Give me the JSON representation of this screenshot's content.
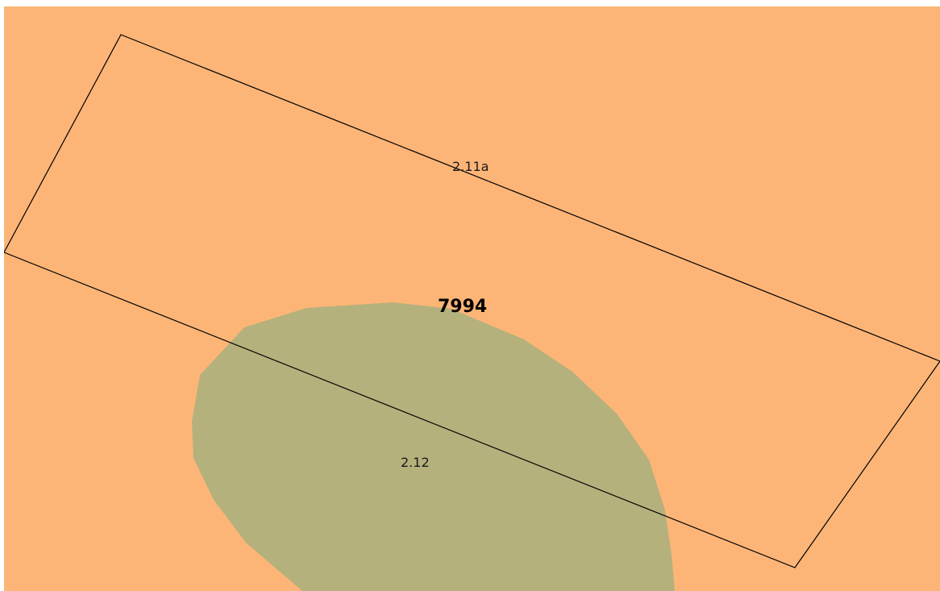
{
  "map": {
    "background_color": "#FDB577",
    "zones": [
      {
        "name": "vegetation-zone",
        "fill_color": "#B4B17C"
      }
    ],
    "parcel": {
      "number": "7994",
      "outline_color": "#000000"
    },
    "labels": {
      "zone_upper": "2.11a",
      "zone_lower": "2.12",
      "parcel_number": "7994"
    }
  }
}
